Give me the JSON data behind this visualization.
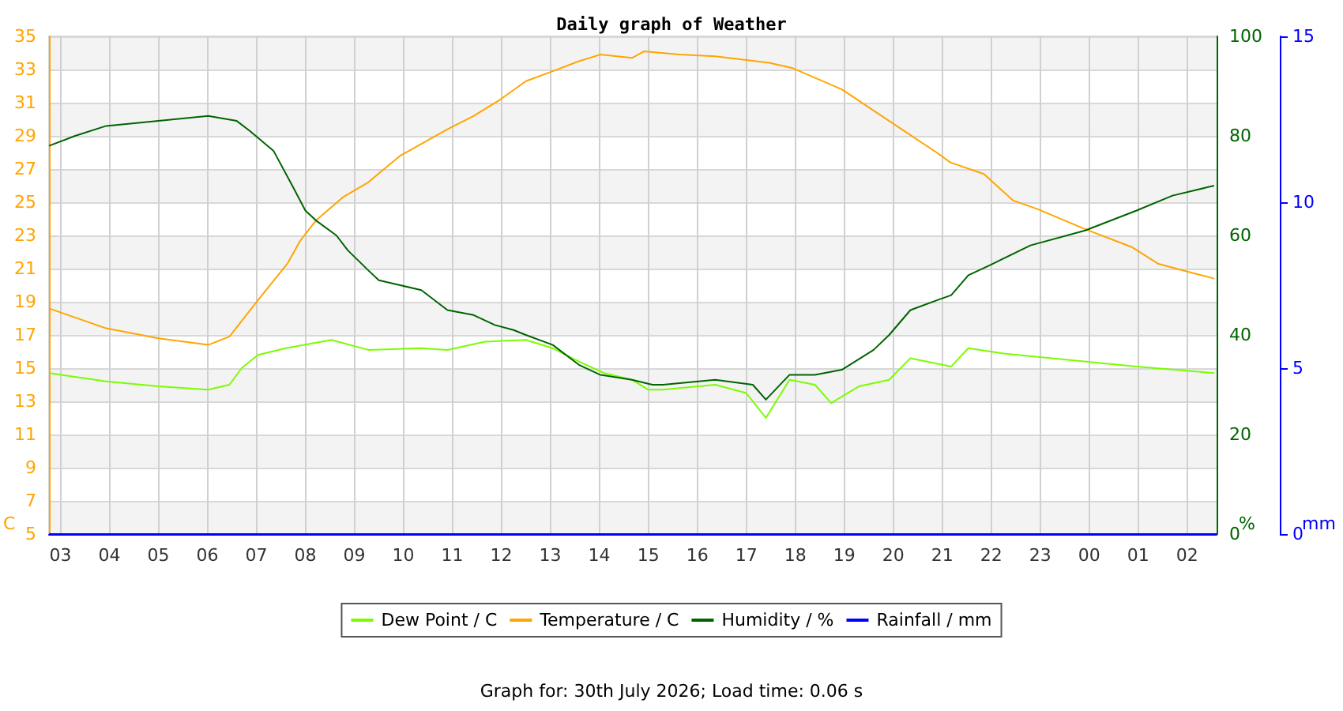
{
  "chart_data": {
    "type": "line",
    "title": "Daily graph of Weather",
    "ylabel": "C",
    "y2label": "%",
    "y3label": "mm",
    "annotations": [
      "Graph for: 30th July 2026; Load time: 0.06 s"
    ],
    "xlim": [
      "2026-07-29T02:46",
      "2026-07-30T02:36"
    ],
    "xticks": [
      {
        "value": "2026-07-29T03:00",
        "label": "03"
      },
      {
        "value": "2026-07-29T04:00",
        "label": "04"
      },
      {
        "value": "2026-07-29T05:00",
        "label": "05"
      },
      {
        "value": "2026-07-29T06:00",
        "label": "06"
      },
      {
        "value": "2026-07-29T07:00",
        "label": "07"
      },
      {
        "value": "2026-07-29T08:00",
        "label": "08"
      },
      {
        "value": "2026-07-29T09:00",
        "label": "09"
      },
      {
        "value": "2026-07-29T10:00",
        "label": "10"
      },
      {
        "value": "2026-07-29T11:00",
        "label": "11"
      },
      {
        "value": "2026-07-29T12:00",
        "label": "12"
      },
      {
        "value": "2026-07-29T13:00",
        "label": "13"
      },
      {
        "value": "2026-07-29T14:00",
        "label": "14"
      },
      {
        "value": "2026-07-29T15:00",
        "label": "15"
      },
      {
        "value": "2026-07-29T16:00",
        "label": "16"
      },
      {
        "value": "2026-07-29T17:00",
        "label": "17"
      },
      {
        "value": "2026-07-29T18:00",
        "label": "18"
      },
      {
        "value": "2026-07-29T19:00",
        "label": "19"
      },
      {
        "value": "2026-07-29T20:00",
        "label": "20"
      },
      {
        "value": "2026-07-29T21:00",
        "label": "21"
      },
      {
        "value": "2026-07-29T22:00",
        "label": "22"
      },
      {
        "value": "2026-07-29T23:00",
        "label": "23"
      },
      {
        "value": "2026-07-30T00:00",
        "label": "00"
      },
      {
        "value": "2026-07-30T01:00",
        "label": "01"
      },
      {
        "value": "2026-07-30T02:00",
        "label": "02"
      }
    ],
    "ylim": [
      5,
      35
    ],
    "yticks": [
      5,
      7,
      9,
      11,
      13,
      15,
      17,
      19,
      21,
      23,
      25,
      27,
      29,
      31,
      33,
      35
    ],
    "y2lim": [
      0,
      100
    ],
    "y2ticks": [
      0,
      20,
      40,
      60,
      80,
      100
    ],
    "y3lim": [
      0,
      15
    ],
    "y3ticks": [
      0,
      5,
      10,
      15
    ],
    "grid": true,
    "legend": "bottom",
    "marker": "none",
    "line_style": "solid",
    "series": [
      {
        "name": "Dew Point / C",
        "color": "#7cfc00",
        "x": [
          "2026-07-29T02:46",
          "2026-07-29T03:56",
          "2026-07-29T05:00",
          "2026-07-29T06:01",
          "2026-07-29T06:27",
          "2026-07-29T06:42",
          "2026-07-29T07:02",
          "2026-07-29T07:36",
          "2026-07-29T08:32",
          "2026-07-29T09:17",
          "2026-07-29T10:22",
          "2026-07-29T10:54",
          "2026-07-29T11:40",
          "2026-07-29T12:30",
          "2026-07-29T13:03",
          "2026-07-29T13:35",
          "2026-07-29T14:06",
          "2026-07-29T14:40",
          "2026-07-29T15:00",
          "2026-07-29T15:18",
          "2026-07-29T16:22",
          "2026-07-29T17:00",
          "2026-07-29T17:24",
          "2026-07-29T17:53",
          "2026-07-29T18:24",
          "2026-07-29T18:44",
          "2026-07-29T19:18",
          "2026-07-29T19:55",
          "2026-07-29T20:21",
          "2026-07-29T21:11",
          "2026-07-29T21:32",
          "2026-07-29T22:12",
          "2026-07-29T23:54",
          "2026-07-30T00:58",
          "2026-07-30T02:33"
        ],
        "values": [
          14.7,
          14.2,
          13.9,
          13.7,
          14.0,
          15.0,
          15.8,
          16.2,
          16.7,
          16.1,
          16.2,
          16.1,
          16.6,
          16.7,
          16.2,
          15.4,
          14.7,
          14.3,
          13.7,
          13.7,
          14.0,
          13.5,
          12.0,
          14.3,
          14.0,
          12.9,
          13.9,
          14.3,
          15.6,
          15.1,
          16.2,
          15.9,
          15.4,
          15.1,
          14.7
        ]
      },
      {
        "name": "Temperature / C",
        "color": "#ffa500",
        "x": [
          "2026-07-29T02:46",
          "2026-07-29T03:56",
          "2026-07-29T05:00",
          "2026-07-29T06:01",
          "2026-07-29T06:27",
          "2026-07-29T07:02",
          "2026-07-29T07:38",
          "2026-07-29T07:54",
          "2026-07-29T08:13",
          "2026-07-29T08:46",
          "2026-07-29T09:17",
          "2026-07-29T09:56",
          "2026-07-29T10:54",
          "2026-07-29T11:26",
          "2026-07-29T11:59",
          "2026-07-29T12:30",
          "2026-07-29T13:03",
          "2026-07-29T13:35",
          "2026-07-29T14:01",
          "2026-07-29T14:40",
          "2026-07-29T14:55",
          "2026-07-29T15:38",
          "2026-07-29T16:22",
          "2026-07-29T17:28",
          "2026-07-29T17:56",
          "2026-07-29T18:57",
          "2026-07-29T19:55",
          "2026-07-29T20:53",
          "2026-07-29T21:10",
          "2026-07-29T21:51",
          "2026-07-29T22:27",
          "2026-07-29T22:56",
          "2026-07-29T23:54",
          "2026-07-30T00:52",
          "2026-07-30T01:24",
          "2026-07-30T02:02",
          "2026-07-30T02:33"
        ],
        "values": [
          18.6,
          17.4,
          16.8,
          16.4,
          16.9,
          19.1,
          21.3,
          22.7,
          23.9,
          25.3,
          26.2,
          27.8,
          29.4,
          30.2,
          31.2,
          32.3,
          32.9,
          33.5,
          33.9,
          33.7,
          34.1,
          33.9,
          33.8,
          33.4,
          33.1,
          31.8,
          29.9,
          28.0,
          27.4,
          26.7,
          25.1,
          24.6,
          23.4,
          22.3,
          21.3,
          20.8,
          20.4
        ]
      },
      {
        "name": "Humidity / %",
        "color": "#006400",
        "axis": "y2",
        "x": [
          "2026-07-29T02:46",
          "2026-07-29T03:18",
          "2026-07-29T03:56",
          "2026-07-29T05:00",
          "2026-07-29T06:01",
          "2026-07-29T06:36",
          "2026-07-29T06:52",
          "2026-07-29T07:21",
          "2026-07-29T07:44",
          "2026-07-29T08:00",
          "2026-07-29T08:13",
          "2026-07-29T08:38",
          "2026-07-29T08:52",
          "2026-07-29T09:17",
          "2026-07-29T09:30",
          "2026-07-29T09:56",
          "2026-07-29T10:22",
          "2026-07-29T10:54",
          "2026-07-29T11:26",
          "2026-07-29T11:52",
          "2026-07-29T12:15",
          "2026-07-29T12:30",
          "2026-07-29T13:03",
          "2026-07-29T13:35",
          "2026-07-29T14:01",
          "2026-07-29T14:40",
          "2026-07-29T15:05",
          "2026-07-29T15:18",
          "2026-07-29T16:22",
          "2026-07-29T17:08",
          "2026-07-29T17:24",
          "2026-07-29T17:53",
          "2026-07-29T18:24",
          "2026-07-29T18:57",
          "2026-07-29T19:36",
          "2026-07-29T19:55",
          "2026-07-29T20:21",
          "2026-07-29T20:54",
          "2026-07-29T21:11",
          "2026-07-29T21:32",
          "2026-07-29T21:58",
          "2026-07-29T22:48",
          "2026-07-29T23:55",
          "2026-07-30T00:58",
          "2026-07-30T01:42",
          "2026-07-30T02:33"
        ],
        "values": [
          78,
          80,
          82,
          83,
          84,
          83,
          81,
          77,
          70,
          65,
          63,
          60,
          57,
          53,
          51,
          50,
          49,
          45,
          44,
          42,
          41,
          40,
          38,
          34,
          32,
          31,
          30,
          30,
          31,
          30,
          27,
          32,
          32,
          33,
          37,
          40,
          45,
          47,
          48,
          52,
          54,
          58,
          61,
          65,
          68,
          70
        ]
      },
      {
        "name": "Rainfall / mm",
        "color": "#0000ff",
        "axis": "y3",
        "x": [
          "2026-07-29T02:46",
          "2026-07-30T02:36"
        ],
        "values": [
          0,
          0
        ]
      }
    ]
  }
}
